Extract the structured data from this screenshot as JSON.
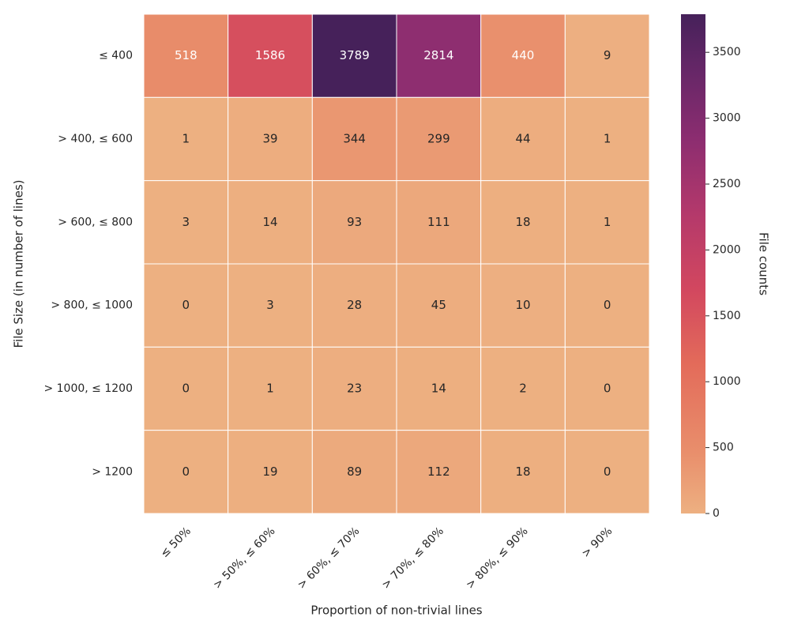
{
  "chart_data": {
    "type": "heatmap",
    "xlabel": "Proportion of non-trivial lines",
    "ylabel": "File Size (in number of lines)",
    "x_categories": [
      "≤  50%",
      "> 50%, ≤ 60%",
      "> 60%, ≤ 70%",
      "> 70%, ≤ 80%",
      "> 80%, ≤ 90%",
      "> 90%"
    ],
    "y_categories": [
      "≤  400",
      "> 400, ≤  600",
      "> 600, ≤  800",
      "> 800, ≤  1000",
      "> 1000, ≤  1200",
      "> 1200"
    ],
    "values": [
      [
        518,
        1586,
        3789,
        2814,
        440,
        9
      ],
      [
        1,
        39,
        344,
        299,
        44,
        1
      ],
      [
        3,
        14,
        93,
        111,
        18,
        1
      ],
      [
        0,
        3,
        28,
        45,
        10,
        0
      ],
      [
        0,
        1,
        23,
        14,
        2,
        0
      ],
      [
        0,
        19,
        89,
        112,
        18,
        0
      ]
    ],
    "colormap": "flare",
    "colorbar": {
      "label": "File counts",
      "lim": [
        0,
        3789
      ],
      "ticks": [
        0,
        500,
        1000,
        1500,
        2000,
        2500,
        3000,
        3500
      ]
    }
  }
}
